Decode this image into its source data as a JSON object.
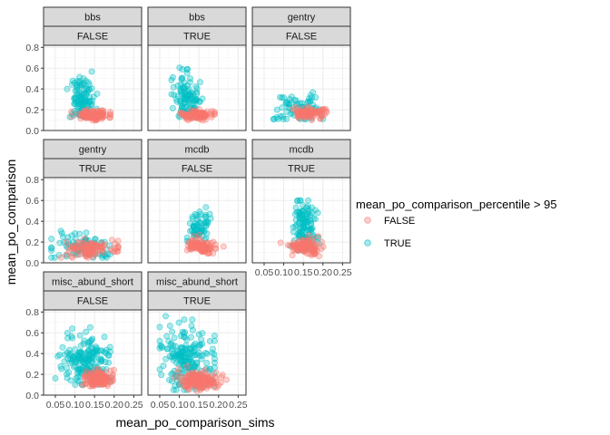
{
  "chart_data": {
    "type": "scatter",
    "xlabel": "mean_po_comparison_sims",
    "ylabel": "mean_po_comparison",
    "xlim": [
      0.02,
      0.27
    ],
    "ylim": [
      0.0,
      0.82
    ],
    "x_ticks": [
      "0.05",
      "0.10",
      "0.15",
      "0.20",
      "0.25"
    ],
    "y_ticks": [
      "0.0",
      "0.2",
      "0.4",
      "0.6",
      "0.8"
    ],
    "legend": {
      "title": "mean_po_comparison_percentile > 95",
      "entries": [
        {
          "label": "FALSE",
          "color": "#F8766D"
        },
        {
          "label": "TRUE",
          "color": "#00BFC4"
        }
      ],
      "placement": "right"
    },
    "grid": true,
    "panels": [
      {
        "strip1": "bbs",
        "strip2": "FALSE",
        "clusters": [
          {
            "series": "TRUE",
            "n": 110,
            "cx": 0.118,
            "cy": 0.3,
            "sx": 0.016,
            "sy": 0.11,
            "xmin": 0.08,
            "xmax": 0.19,
            "ymin": 0.13,
            "ymax": 0.64
          },
          {
            "series": "FALSE",
            "n": 110,
            "cx": 0.145,
            "cy": 0.15,
            "sx": 0.022,
            "sy": 0.022,
            "xmin": 0.09,
            "xmax": 0.19,
            "ymin": 0.09,
            "ymax": 0.22
          }
        ]
      },
      {
        "strip1": "bbs",
        "strip2": "TRUE",
        "clusters": [
          {
            "series": "TRUE",
            "n": 110,
            "cx": 0.118,
            "cy": 0.3,
            "sx": 0.016,
            "sy": 0.11,
            "xmin": 0.08,
            "xmax": 0.19,
            "ymin": 0.13,
            "ymax": 0.65
          },
          {
            "series": "FALSE",
            "n": 110,
            "cx": 0.145,
            "cy": 0.15,
            "sx": 0.022,
            "sy": 0.022,
            "xmin": 0.09,
            "xmax": 0.19,
            "ymin": 0.09,
            "ymax": 0.22
          }
        ]
      },
      {
        "strip1": "gentry",
        "strip2": "FALSE",
        "clusters": [
          {
            "series": "TRUE",
            "n": 70,
            "cx": 0.14,
            "cy": 0.21,
            "sx": 0.03,
            "sy": 0.07,
            "xmin": 0.07,
            "xmax": 0.2,
            "ymin": 0.11,
            "ymax": 0.4
          },
          {
            "series": "FALSE",
            "n": 90,
            "cx": 0.16,
            "cy": 0.17,
            "sx": 0.025,
            "sy": 0.03,
            "xmin": 0.09,
            "xmax": 0.21,
            "ymin": 0.1,
            "ymax": 0.25
          }
        ]
      },
      {
        "strip1": "gentry",
        "strip2": "TRUE",
        "clusters": [
          {
            "series": "TRUE",
            "n": 90,
            "cx": 0.12,
            "cy": 0.15,
            "sx": 0.04,
            "sy": 0.06,
            "xmin": 0.04,
            "xmax": 0.19,
            "ymin": 0.05,
            "ymax": 0.42
          },
          {
            "series": "FALSE",
            "n": 100,
            "cx": 0.14,
            "cy": 0.13,
            "sx": 0.035,
            "sy": 0.04,
            "xmin": 0.05,
            "xmax": 0.21,
            "ymin": 0.05,
            "ymax": 0.26
          }
        ]
      },
      {
        "strip1": "mcdb",
        "strip2": "FALSE",
        "clusters": [
          {
            "series": "TRUE",
            "n": 70,
            "cx": 0.148,
            "cy": 0.33,
            "sx": 0.013,
            "sy": 0.1,
            "xmin": 0.12,
            "xmax": 0.18,
            "ymin": 0.14,
            "ymax": 0.56
          },
          {
            "series": "FALSE",
            "n": 110,
            "cx": 0.155,
            "cy": 0.16,
            "sx": 0.018,
            "sy": 0.035,
            "xmin": 0.12,
            "xmax": 0.23,
            "ymin": 0.09,
            "ymax": 0.28
          }
        ]
      },
      {
        "strip1": "mcdb",
        "strip2": "TRUE",
        "clusters": [
          {
            "series": "TRUE",
            "n": 120,
            "cx": 0.155,
            "cy": 0.35,
            "sx": 0.015,
            "sy": 0.12,
            "xmin": 0.09,
            "xmax": 0.19,
            "ymin": 0.12,
            "ymax": 0.6
          },
          {
            "series": "FALSE",
            "n": 110,
            "cx": 0.155,
            "cy": 0.15,
            "sx": 0.02,
            "sy": 0.04,
            "xmin": 0.04,
            "xmax": 0.22,
            "ymin": 0.06,
            "ymax": 0.3
          }
        ]
      },
      {
        "strip1": "misc_abund_short",
        "strip2": "FALSE",
        "clusters": [
          {
            "series": "TRUE",
            "n": 180,
            "cx": 0.13,
            "cy": 0.33,
            "sx": 0.03,
            "sy": 0.13,
            "xmin": 0.05,
            "xmax": 0.19,
            "ymin": 0.1,
            "ymax": 0.68
          },
          {
            "series": "FALSE",
            "n": 140,
            "cx": 0.16,
            "cy": 0.15,
            "sx": 0.02,
            "sy": 0.04,
            "xmin": 0.12,
            "xmax": 0.22,
            "ymin": 0.08,
            "ymax": 0.26
          }
        ]
      },
      {
        "strip1": "misc_abund_short",
        "strip2": "TRUE",
        "clusters": [
          {
            "series": "TRUE",
            "n": 200,
            "cx": 0.12,
            "cy": 0.34,
            "sx": 0.035,
            "sy": 0.14,
            "xmin": 0.05,
            "xmax": 0.19,
            "ymin": 0.05,
            "ymax": 0.76
          },
          {
            "series": "FALSE",
            "n": 160,
            "cx": 0.15,
            "cy": 0.14,
            "sx": 0.025,
            "sy": 0.045,
            "xmin": 0.06,
            "xmax": 0.22,
            "ymin": 0.04,
            "ymax": 0.28
          }
        ]
      }
    ]
  }
}
